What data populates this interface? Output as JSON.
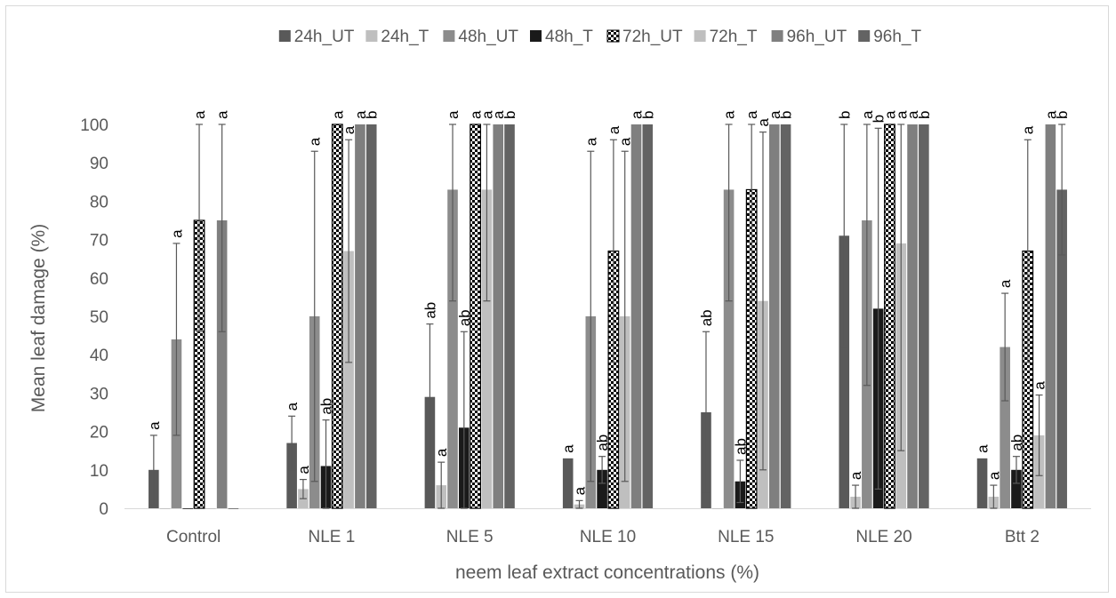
{
  "chart_data": {
    "type": "bar",
    "xlabel": "neem leaf extract concentrations (%)",
    "ylabel": "Mean leaf damage (%)",
    "ylim": [
      0,
      100
    ],
    "yticks": [
      0,
      10,
      20,
      30,
      40,
      50,
      60,
      70,
      80,
      90,
      100
    ],
    "grid": false,
    "legend_position": "top",
    "categories": [
      "Control",
      "NLE 1",
      "NLE 5",
      "NLE 10",
      "NLE 15",
      "NLE 20",
      "Btt 2"
    ],
    "series": [
      {
        "name": "24h_UT",
        "color": "#595959",
        "pattern": "solid",
        "values": [
          10,
          17,
          29,
          13,
          25,
          71,
          13
        ],
        "errors": [
          9,
          7,
          19,
          0,
          21,
          29,
          0
        ],
        "labels": [
          "a",
          "a",
          "ab",
          "a",
          "ab",
          "b",
          "a"
        ]
      },
      {
        "name": "24h_T",
        "color": "#bfbfbf",
        "pattern": "solid",
        "values": [
          0,
          5,
          6,
          1,
          0,
          3,
          3
        ],
        "errors": [
          0,
          2.5,
          6,
          1,
          0,
          3,
          3
        ],
        "labels": [
          "",
          "a",
          "a",
          "a",
          "",
          "a",
          "a"
        ]
      },
      {
        "name": "48h_UT",
        "color": "#8c8c8c",
        "pattern": "solid",
        "values": [
          44,
          50,
          83,
          50,
          83,
          75,
          42
        ],
        "errors": [
          25,
          43,
          29,
          43,
          29,
          43,
          14
        ],
        "labels": [
          "a",
          "a",
          "a",
          "a",
          "a",
          "a",
          "a"
        ]
      },
      {
        "name": "48h_T",
        "color": "#1a1a1a",
        "pattern": "solid",
        "values": [
          0,
          11,
          21,
          10,
          7,
          52,
          10
        ],
        "errors": [
          0,
          12,
          25,
          3.5,
          5.5,
          47,
          3.5
        ],
        "labels": [
          "",
          "ab",
          "ab",
          "ab",
          "ab",
          "b",
          "ab"
        ]
      },
      {
        "name": "72h_UT",
        "color": "#000000",
        "pattern": "checker",
        "values": [
          75,
          100,
          100,
          67,
          83,
          100,
          67
        ],
        "errors": [
          29,
          0,
          0,
          29,
          29,
          0,
          29
        ],
        "labels": [
          "a",
          "a",
          "a",
          "a",
          "a",
          "a",
          "a"
        ]
      },
      {
        "name": "72h_T",
        "color": "#bfbfbf",
        "pattern": "solid",
        "values": [
          0,
          67,
          83,
          50,
          54,
          69,
          19
        ],
        "errors": [
          0,
          29,
          29,
          43,
          44,
          54,
          10.5
        ],
        "labels": [
          "",
          "a",
          "a",
          "a",
          "a",
          "a",
          "a"
        ]
      },
      {
        "name": "96h_UT",
        "color": "#7f7f7f",
        "pattern": "solid",
        "values": [
          75,
          100,
          100,
          100,
          100,
          100,
          100
        ],
        "errors": [
          29,
          0,
          0,
          0,
          0,
          0,
          0
        ],
        "labels": [
          "a",
          "a",
          "a",
          "a",
          "a",
          "a",
          "a"
        ]
      },
      {
        "name": "96h_T",
        "color": "#636363",
        "pattern": "solid",
        "values": [
          0,
          100,
          100,
          100,
          100,
          100,
          83
        ],
        "errors": [
          0,
          0,
          0,
          0,
          0,
          0,
          17
        ],
        "labels": [
          "",
          "b",
          "b",
          "b",
          "b",
          "b",
          "b"
        ]
      }
    ]
  }
}
